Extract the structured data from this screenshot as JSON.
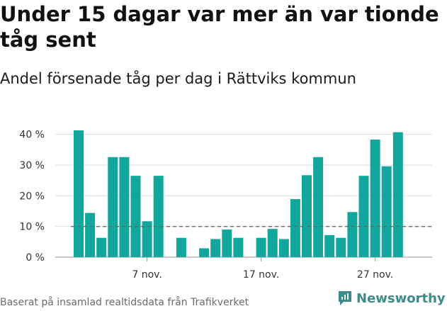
{
  "header": {
    "title": "Under 15 dagar var mer än var tionde tåg sent",
    "subtitle": "Andel försenade tåg per dag i Rättviks kommun"
  },
  "footer": {
    "source": "Baserat på insamlad realtidsdata från Trafikverket",
    "brand": "Newsworthy",
    "brand_icon": "newsworthy-logo-icon"
  },
  "colors": {
    "bar": "#12a79d",
    "grid": "#dddddd",
    "reference": "#666666",
    "axis_text": "#333333",
    "brand": "#3d8a8a"
  },
  "chart_data": {
    "type": "bar",
    "title": "Andel försenade tåg per dag i Rättviks kommun",
    "xlabel": "",
    "ylabel": "",
    "ylim": [
      0,
      45
    ],
    "y_unit": "%",
    "y_ticks": [
      0,
      10,
      20,
      30,
      40
    ],
    "y_tick_labels": [
      "0 %",
      "10 %",
      "20 %",
      "30 %",
      "40 %"
    ],
    "grid": true,
    "reference_line": 10,
    "categories": [
      "1 nov.",
      "2 nov.",
      "3 nov.",
      "4 nov.",
      "5 nov.",
      "6 nov.",
      "7 nov.",
      "8 nov.",
      "9 nov.",
      "10 nov.",
      "11 nov.",
      "12 nov.",
      "13 nov.",
      "14 nov.",
      "15 nov.",
      "16 nov.",
      "17 nov.",
      "18 nov.",
      "19 nov.",
      "20 nov.",
      "21 nov.",
      "22 nov.",
      "23 nov.",
      "24 nov.",
      "25 nov.",
      "26 nov.",
      "27 nov.",
      "28 nov.",
      "29 nov."
    ],
    "values": [
      41.3,
      14.4,
      6.3,
      32.6,
      32.6,
      26.5,
      11.7,
      26.5,
      0,
      6.3,
      0,
      2.9,
      5.9,
      9.0,
      6.3,
      0,
      6.3,
      9.2,
      5.9,
      18.9,
      26.7,
      32.6,
      7.2,
      6.3,
      14.7,
      26.5,
      38.3,
      29.6,
      40.7
    ],
    "x_tick_labels": [
      {
        "index": 6,
        "label": "7 nov."
      },
      {
        "index": 16,
        "label": "17 nov."
      },
      {
        "index": 26,
        "label": "27 nov."
      }
    ]
  }
}
